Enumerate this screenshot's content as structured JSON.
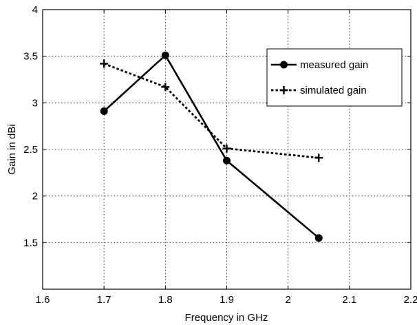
{
  "chart_data": {
    "type": "line",
    "xlabel": "Frequency in GHz",
    "ylabel": "Gain in dBi",
    "xlim": [
      1.6,
      2.2
    ],
    "ylim": [
      1,
      4
    ],
    "xticks": [
      1.6,
      1.7,
      1.8,
      1.9,
      2.0,
      2.1,
      2.2
    ],
    "xtick_labels": [
      "1.6",
      "1.7",
      "1.8",
      "1.9",
      "2",
      "2.1",
      "2.2"
    ],
    "yticks": [
      1.5,
      2.0,
      2.5,
      3.0,
      3.5,
      4.0
    ],
    "ytick_labels": [
      "1.5",
      "2",
      "2.5",
      "3",
      "3.5",
      "4"
    ],
    "grid": true,
    "legend_position": "top-right",
    "series": [
      {
        "name": "measured gain",
        "line_style": "solid",
        "marker": "circle",
        "color": "#000000",
        "x": [
          1.7,
          1.8,
          1.9,
          2.05
        ],
        "y": [
          2.91,
          3.51,
          2.38,
          1.55
        ]
      },
      {
        "name": "simulated gain",
        "line_style": "dotted",
        "marker": "plus",
        "color": "#000000",
        "x": [
          1.7,
          1.8,
          1.9,
          2.05
        ],
        "y": [
          3.42,
          3.17,
          2.51,
          2.41
        ]
      }
    ]
  }
}
